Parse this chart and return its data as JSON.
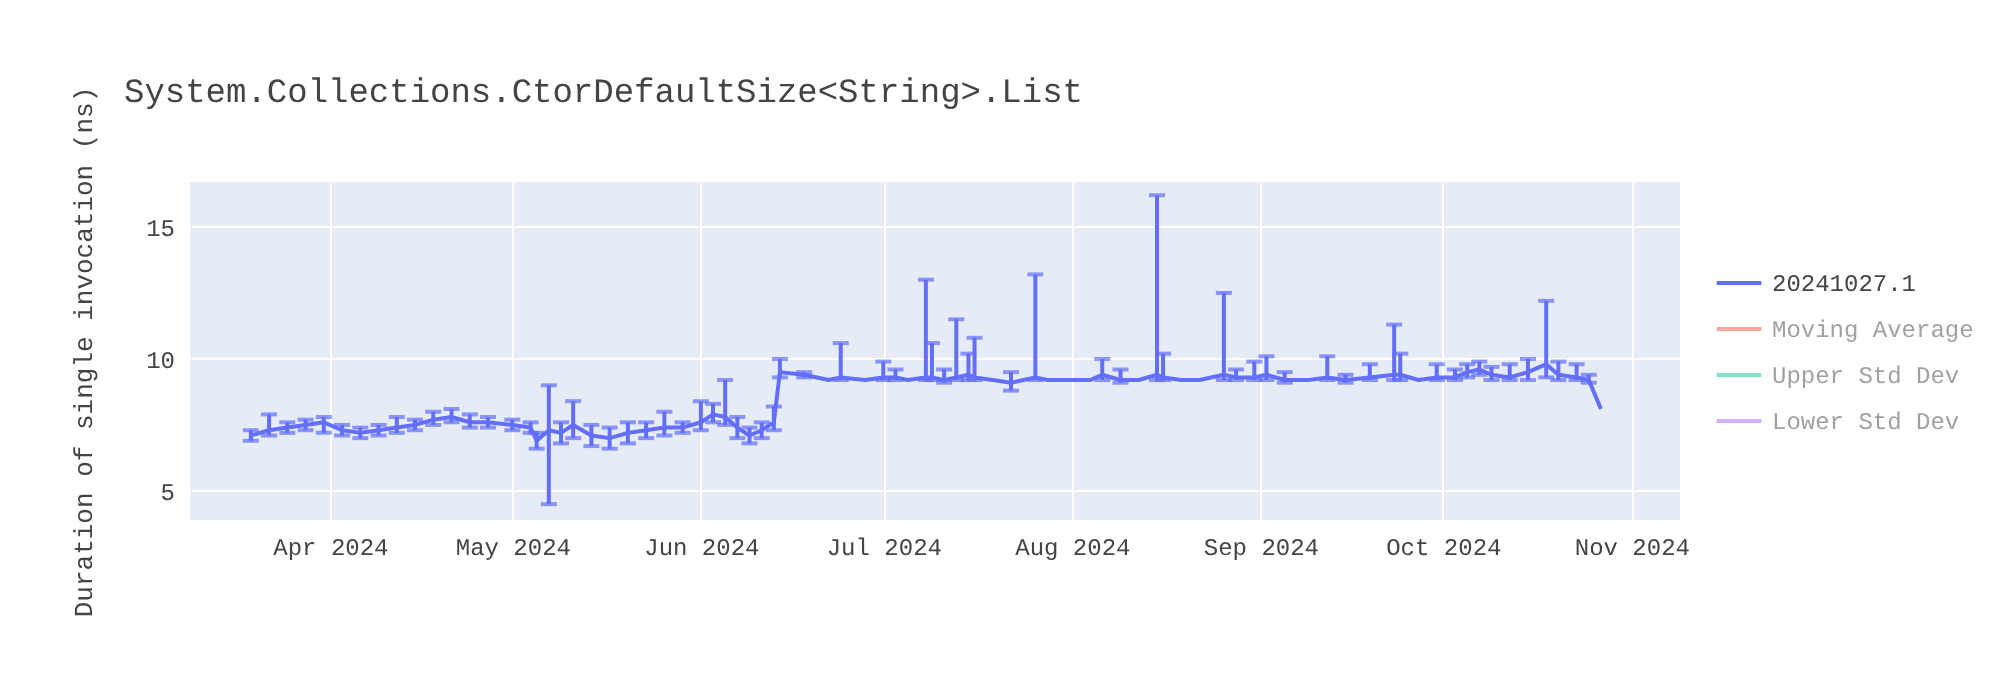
{
  "chart_data": {
    "type": "line",
    "title": "System.Collections.CtorDefaultSize<String>.List",
    "ylabel": "Duration of single invocation (ns)",
    "xlim": [
      "2024-03-09",
      "2024-11-09"
    ],
    "ylim": [
      3.9,
      16.7
    ],
    "yticks": [
      5,
      10,
      15
    ],
    "xticks": [
      {
        "value": "2024-04-01",
        "label": "Apr 2024"
      },
      {
        "value": "2024-05-01",
        "label": "May 2024"
      },
      {
        "value": "2024-06-01",
        "label": "Jun 2024"
      },
      {
        "value": "2024-07-01",
        "label": "Jul 2024"
      },
      {
        "value": "2024-08-01",
        "label": "Aug 2024"
      },
      {
        "value": "2024-09-01",
        "label": "Sep 2024"
      },
      {
        "value": "2024-10-01",
        "label": "Oct 2024"
      },
      {
        "value": "2024-11-01",
        "label": "Nov 2024"
      }
    ],
    "grid": true,
    "legend": "right",
    "marker": "none",
    "line_style": "solid",
    "series": [
      {
        "name": "20241027.1",
        "color": "#636efa",
        "x": [
          "2024-03-19",
          "2024-03-22",
          "2024-03-25",
          "2024-03-28",
          "2024-03-31",
          "2024-04-03",
          "2024-04-06",
          "2024-04-09",
          "2024-04-12",
          "2024-04-15",
          "2024-04-18",
          "2024-04-21",
          "2024-04-24",
          "2024-04-27",
          "2024-05-01",
          "2024-05-04",
          "2024-05-05",
          "2024-05-07",
          "2024-05-09",
          "2024-05-11",
          "2024-05-14",
          "2024-05-17",
          "2024-05-20",
          "2024-05-23",
          "2024-05-26",
          "2024-05-29",
          "2024-06-01",
          "2024-06-03",
          "2024-06-05",
          "2024-06-07",
          "2024-06-09",
          "2024-06-11",
          "2024-06-13",
          "2024-06-14",
          "2024-06-18",
          "2024-06-22",
          "2024-06-24",
          "2024-06-28",
          "2024-07-01",
          "2024-07-03",
          "2024-07-05",
          "2024-07-08",
          "2024-07-09",
          "2024-07-11",
          "2024-07-13",
          "2024-07-15",
          "2024-07-16",
          "2024-07-19",
          "2024-07-22",
          "2024-07-26",
          "2024-07-28",
          "2024-08-01",
          "2024-08-04",
          "2024-08-06",
          "2024-08-09",
          "2024-08-12",
          "2024-08-15",
          "2024-08-16",
          "2024-08-19",
          "2024-08-22",
          "2024-08-26",
          "2024-08-28",
          "2024-08-31",
          "2024-09-02",
          "2024-09-05",
          "2024-09-09",
          "2024-09-12",
          "2024-09-15",
          "2024-09-19",
          "2024-09-23",
          "2024-09-24",
          "2024-09-27",
          "2024-09-30",
          "2024-10-03",
          "2024-10-05",
          "2024-10-07",
          "2024-10-09",
          "2024-10-12",
          "2024-10-15",
          "2024-10-18",
          "2024-10-20",
          "2024-10-23",
          "2024-10-25",
          "2024-10-27"
        ],
        "values": [
          7.1,
          7.3,
          7.4,
          7.5,
          7.6,
          7.3,
          7.2,
          7.3,
          7.4,
          7.5,
          7.7,
          7.8,
          7.6,
          7.6,
          7.5,
          7.4,
          6.9,
          7.3,
          7.2,
          7.5,
          7.1,
          7.0,
          7.2,
          7.3,
          7.4,
          7.4,
          7.6,
          7.9,
          7.8,
          7.4,
          7.1,
          7.3,
          7.6,
          9.5,
          9.4,
          9.2,
          9.3,
          9.2,
          9.3,
          9.3,
          9.2,
          9.3,
          9.3,
          9.2,
          9.3,
          9.4,
          9.3,
          9.2,
          9.1,
          9.3,
          9.2,
          9.2,
          9.2,
          9.4,
          9.2,
          9.2,
          9.4,
          9.3,
          9.2,
          9.2,
          9.4,
          9.3,
          9.3,
          9.4,
          9.2,
          9.2,
          9.3,
          9.2,
          9.3,
          9.4,
          9.4,
          9.2,
          9.3,
          9.3,
          9.5,
          9.6,
          9.4,
          9.3,
          9.5,
          9.8,
          9.4,
          9.3,
          9.2,
          8.1
        ],
        "errors": [
          [
            6.9,
            7.3
          ],
          [
            7.1,
            7.9
          ],
          [
            7.2,
            7.6
          ],
          [
            7.3,
            7.7
          ],
          [
            7.2,
            7.8
          ],
          [
            7.1,
            7.5
          ],
          [
            7.0,
            7.4
          ],
          [
            7.1,
            7.5
          ],
          [
            7.2,
            7.8
          ],
          [
            7.3,
            7.7
          ],
          [
            7.5,
            8.0
          ],
          [
            7.6,
            8.1
          ],
          [
            7.4,
            7.9
          ],
          [
            7.4,
            7.8
          ],
          [
            7.3,
            7.7
          ],
          [
            7.2,
            7.6
          ],
          [
            6.6,
            7.2
          ],
          [
            4.5,
            9.0
          ],
          [
            6.8,
            7.6
          ],
          [
            7.0,
            8.4
          ],
          [
            6.7,
            7.5
          ],
          [
            6.6,
            7.4
          ],
          [
            6.8,
            7.6
          ],
          [
            7.0,
            7.6
          ],
          [
            7.1,
            8.0
          ],
          [
            7.2,
            7.6
          ],
          [
            7.3,
            8.4
          ],
          [
            7.6,
            8.3
          ],
          [
            7.5,
            9.2
          ],
          [
            7.0,
            7.8
          ],
          [
            6.8,
            7.4
          ],
          [
            7.0,
            7.6
          ],
          [
            7.3,
            8.2
          ],
          [
            9.3,
            10.0
          ],
          [
            9.3,
            9.5
          ],
          null,
          [
            9.2,
            10.6
          ],
          null,
          [
            9.2,
            9.9
          ],
          [
            9.2,
            9.6
          ],
          null,
          [
            9.2,
            13.0
          ],
          [
            9.2,
            10.6
          ],
          [
            9.1,
            9.6
          ],
          [
            9.2,
            11.5
          ],
          [
            9.2,
            10.2
          ],
          [
            9.2,
            10.8
          ],
          null,
          [
            8.8,
            9.5
          ],
          [
            9.2,
            13.2
          ],
          null,
          null,
          null,
          [
            9.2,
            10.0
          ],
          [
            9.1,
            9.6
          ],
          null,
          [
            9.2,
            16.2
          ],
          [
            9.2,
            10.2
          ],
          null,
          null,
          [
            9.2,
            12.5
          ],
          [
            9.2,
            9.6
          ],
          [
            9.2,
            9.9
          ],
          [
            9.2,
            10.1
          ],
          [
            9.1,
            9.5
          ],
          null,
          [
            9.2,
            10.1
          ],
          [
            9.1,
            9.4
          ],
          [
            9.2,
            9.8
          ],
          [
            9.2,
            11.3
          ],
          [
            9.2,
            10.2
          ],
          null,
          [
            9.2,
            9.8
          ],
          [
            9.2,
            9.6
          ],
          [
            9.3,
            9.8
          ],
          [
            9.4,
            9.9
          ],
          [
            9.2,
            9.7
          ],
          [
            9.2,
            9.8
          ],
          [
            9.2,
            10.0
          ],
          [
            9.3,
            12.2
          ],
          [
            9.2,
            9.9
          ],
          [
            9.2,
            9.8
          ],
          [
            9.1,
            9.4
          ],
          null
        ]
      },
      {
        "name": "Moving Average",
        "color": "#ef553b"
      },
      {
        "name": "Upper Std Dev",
        "color": "#00cc96"
      },
      {
        "name": "Lower Std Dev",
        "color": "#ab63fa"
      }
    ]
  }
}
